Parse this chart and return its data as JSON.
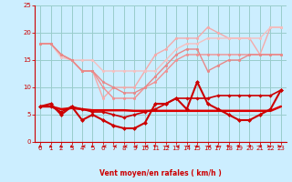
{
  "bg_color": "#cceeff",
  "grid_color": "#99cccc",
  "xlabel": "Vent moyen/en rafales ( km/h )",
  "xlim": [
    -0.5,
    23.5
  ],
  "ylim": [
    0,
    25
  ],
  "xticks": [
    0,
    1,
    2,
    3,
    4,
    5,
    6,
    7,
    8,
    9,
    10,
    11,
    12,
    13,
    14,
    15,
    16,
    17,
    18,
    19,
    20,
    21,
    22,
    23
  ],
  "yticks": [
    0,
    5,
    10,
    15,
    20,
    25
  ],
  "line_top1_color": "#f5aaaa",
  "line_top1_x": [
    0,
    1,
    2,
    3,
    4,
    5,
    6,
    7,
    8,
    9,
    10,
    11,
    12,
    13,
    14,
    15,
    16,
    17,
    18,
    19,
    20,
    21,
    22,
    23
  ],
  "line_top1_y": [
    18,
    18,
    16,
    15,
    13,
    13,
    8,
    10,
    10,
    10,
    13,
    16,
    17,
    19,
    19,
    19,
    21,
    20,
    19,
    19,
    19,
    16,
    21,
    21
  ],
  "line_top2_color": "#f5c0c0",
  "line_top2_x": [
    0,
    1,
    2,
    3,
    4,
    5,
    6,
    7,
    8,
    9,
    10,
    11,
    12,
    13,
    14,
    15,
    16,
    17,
    18,
    19,
    20,
    21,
    22,
    23
  ],
  "line_top2_y": [
    18,
    18,
    15.5,
    15,
    15,
    15,
    13,
    13,
    13,
    13,
    13,
    13,
    15,
    17,
    18,
    18,
    19,
    19,
    19,
    19,
    19,
    19,
    21,
    21
  ],
  "line_mid1_color": "#f09090",
  "line_mid1_x": [
    0,
    1,
    2,
    3,
    4,
    5,
    6,
    7,
    8,
    9,
    10,
    11,
    12,
    13,
    14,
    15,
    16,
    17,
    18,
    19,
    20,
    21,
    22,
    23
  ],
  "line_mid1_y": [
    18,
    18,
    16,
    15,
    13,
    13,
    10,
    8,
    8,
    8,
    10,
    11,
    13,
    15,
    16,
    16,
    16,
    16,
    16,
    16,
    16,
    16,
    16,
    16
  ],
  "line_mid2_color": "#e88888",
  "line_mid2_x": [
    0,
    1,
    2,
    3,
    4,
    5,
    6,
    7,
    8,
    9,
    10,
    11,
    12,
    13,
    14,
    15,
    16,
    17,
    18,
    19,
    20,
    21,
    22,
    23
  ],
  "line_mid2_y": [
    18,
    18,
    16,
    15,
    13,
    13,
    11,
    10,
    9,
    9,
    10,
    12,
    14,
    16,
    17,
    17,
    13,
    14,
    15,
    15,
    16,
    16,
    16,
    16
  ],
  "line_bot_wavy_color": "#cc0000",
  "line_bot_wavy_x": [
    0,
    1,
    2,
    3,
    4,
    5,
    6,
    7,
    8,
    9,
    10,
    11,
    12,
    13,
    14,
    15,
    16,
    17,
    18,
    19,
    20,
    21,
    22,
    23
  ],
  "line_bot_wavy_y": [
    6.5,
    7,
    5,
    6.5,
    4,
    5,
    4,
    3,
    2.5,
    2.5,
    3.5,
    7,
    7,
    8,
    6,
    11,
    7,
    6,
    5,
    4,
    4,
    5,
    6,
    9.5
  ],
  "line_flat_color": "#dd0000",
  "line_flat_x": [
    0,
    1,
    2,
    3,
    4,
    5,
    6,
    7,
    8,
    9,
    10,
    11,
    12,
    13,
    14,
    15,
    16,
    17,
    18,
    19,
    20,
    21,
    22,
    23
  ],
  "line_flat_y": [
    6.5,
    6.5,
    6.0,
    6.2,
    6.0,
    5.8,
    5.8,
    5.8,
    5.8,
    5.7,
    5.7,
    5.7,
    5.7,
    5.7,
    5.7,
    5.7,
    5.7,
    5.7,
    5.7,
    5.7,
    5.7,
    5.7,
    5.7,
    6.5
  ],
  "line_rising_color": "#cc0000",
  "line_rising_x": [
    0,
    1,
    2,
    3,
    4,
    5,
    6,
    7,
    8,
    9,
    10,
    11,
    12,
    13,
    14,
    15,
    16,
    17,
    18,
    19,
    20,
    21,
    22,
    23
  ],
  "line_rising_y": [
    6.5,
    6.5,
    5.5,
    6.5,
    6,
    5.5,
    5.5,
    5,
    4.5,
    5,
    5.5,
    6,
    7,
    8,
    8,
    8,
    8,
    8.5,
    8.5,
    8.5,
    8.5,
    8.5,
    8.5,
    9.5
  ],
  "arrows_x": [
    0,
    1,
    2,
    3,
    4,
    5,
    6,
    7,
    8,
    9,
    10,
    11,
    12,
    13,
    14,
    15,
    16,
    17,
    18,
    19,
    20,
    21,
    22,
    23
  ],
  "arrows_dir": [
    225,
    225,
    225,
    225,
    270,
    225,
    270,
    270,
    270,
    270,
    270,
    315,
    270,
    270,
    270,
    225,
    270,
    225,
    315,
    315,
    45,
    45,
    90,
    90
  ],
  "arrow_color": "#cc0000"
}
